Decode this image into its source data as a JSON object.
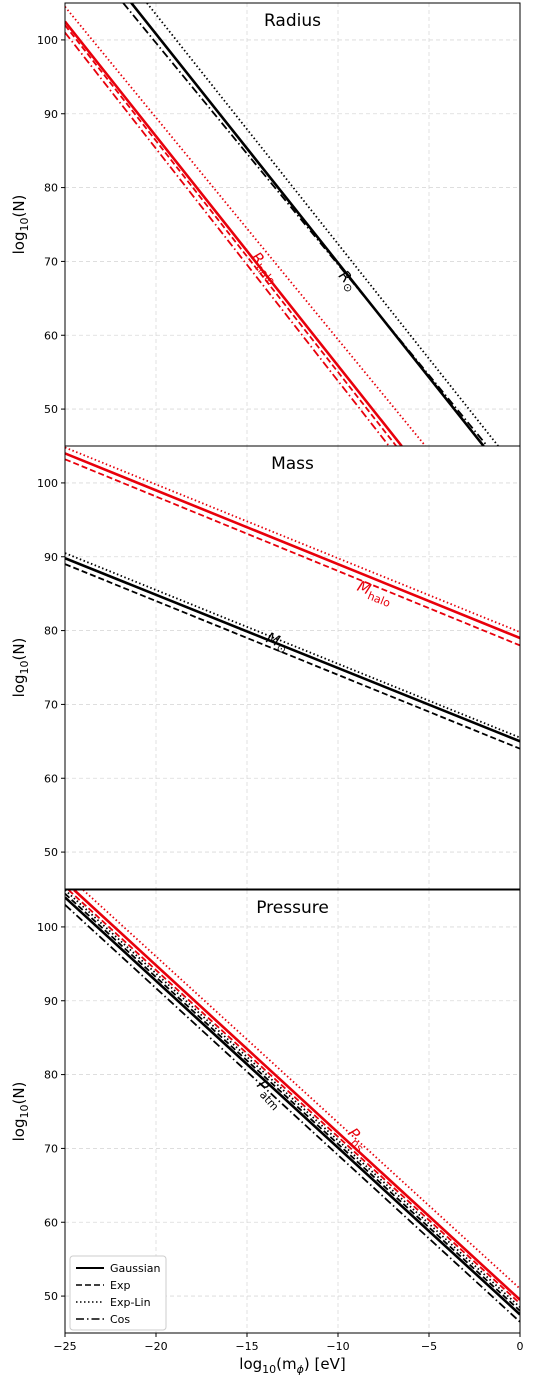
{
  "figure": {
    "xlabel_main": "log",
    "xlabel_sub": "10",
    "xlabel_rest_open": "(m",
    "xlabel_phi": "ϕ",
    "xlabel_rest_close": ") [eV]",
    "ylabel_main": "log",
    "ylabel_sub": "10",
    "ylabel_rest": "(N)",
    "x_ticks": [
      -25,
      -20,
      -15,
      -10,
      -5,
      0
    ],
    "x_tick_labels": [
      "−25",
      "−20",
      "−15",
      "−10",
      "−5",
      "0"
    ],
    "y_ticks": [
      50,
      60,
      70,
      80,
      90,
      100
    ],
    "y_tick_labels": [
      "50",
      "60",
      "70",
      "80",
      "90",
      "100"
    ],
    "xlim": [
      -25,
      0
    ],
    "ylim": [
      45,
      105
    ],
    "grid": true,
    "legend": {
      "placement": "bottom-left",
      "entries": [
        {
          "label": "Gaussian",
          "style": "solid"
        },
        {
          "label": "Exp",
          "style": "dashed"
        },
        {
          "label": "Exp-Lin",
          "style": "dotted"
        },
        {
          "label": "Cos",
          "style": "dashdot"
        }
      ]
    },
    "colors": {
      "black": "#000000",
      "red": "#e8000b"
    }
  },
  "chart_data": [
    {
      "type": "line",
      "title": "Radius",
      "xlim": [
        -25,
        0
      ],
      "ylim": [
        45,
        105
      ],
      "labels": [
        {
          "text": "R",
          "sub": "halo",
          "color": "red",
          "x": -14.8,
          "y": 70.5
        },
        {
          "text": "R",
          "sub": "⊙",
          "color": "black",
          "x": -10.0,
          "y": 68.0
        }
      ],
      "series": [
        {
          "group": "black",
          "style": "solid",
          "x": [
            -22,
            -2
          ],
          "y": [
            107,
            45
          ]
        },
        {
          "group": "black",
          "style": "dashed",
          "x": [
            -22,
            -2
          ],
          "y": [
            107,
            45
          ]
        },
        {
          "group": "black",
          "style": "dotted",
          "x": [
            -20.5,
            -1.2
          ],
          "y": [
            105,
            45
          ]
        },
        {
          "group": "black",
          "style": "dashdot",
          "x": [
            -21.8,
            -1.8
          ],
          "y": [
            105,
            45
          ]
        },
        {
          "group": "red",
          "style": "solid",
          "x": [
            -25,
            -6.5
          ],
          "y": [
            102.5,
            45
          ]
        },
        {
          "group": "red",
          "style": "dashed",
          "x": [
            -25,
            -6.8
          ],
          "y": [
            102,
            45
          ]
        },
        {
          "group": "red",
          "style": "dotted",
          "x": [
            -25,
            -5.2
          ],
          "y": [
            104.5,
            45
          ]
        },
        {
          "group": "red",
          "style": "dashdot",
          "x": [
            -25,
            -7.2
          ],
          "y": [
            101,
            45
          ]
        }
      ]
    },
    {
      "type": "line",
      "title": "Mass",
      "xlim": [
        -25,
        0
      ],
      "ylim": [
        45,
        105
      ],
      "labels": [
        {
          "text": "M",
          "sub": "halo",
          "color": "red",
          "x": -9.0,
          "y": 85.5
        },
        {
          "text": "M",
          "sub": "⊙",
          "color": "black",
          "x": -14.0,
          "y": 78.5
        }
      ],
      "series": [
        {
          "group": "black",
          "style": "solid",
          "x": [
            -25,
            0
          ],
          "y": [
            89.8,
            65.0
          ]
        },
        {
          "group": "black",
          "style": "dashed",
          "x": [
            -25,
            0
          ],
          "y": [
            89.0,
            64.0
          ]
        },
        {
          "group": "black",
          "style": "dotted",
          "x": [
            -25,
            0
          ],
          "y": [
            90.5,
            65.5
          ]
        },
        {
          "group": "red",
          "style": "solid",
          "x": [
            -25,
            0
          ],
          "y": [
            104.0,
            79.0
          ]
        },
        {
          "group": "red",
          "style": "dashed",
          "x": [
            -25,
            0
          ],
          "y": [
            103.2,
            78.0
          ]
        },
        {
          "group": "red",
          "style": "dotted",
          "x": [
            -25,
            0
          ],
          "y": [
            104.8,
            79.8
          ]
        }
      ]
    },
    {
      "type": "line",
      "title": "Pressure",
      "xlim": [
        -25,
        0
      ],
      "ylim": [
        45,
        105
      ],
      "labels": [
        {
          "text": "P",
          "sub": "atm",
          "color": "black",
          "x": -14.5,
          "y": 78.5
        },
        {
          "text": "P",
          "sub": "ns",
          "color": "red",
          "x": -9.5,
          "y": 72.0
        }
      ],
      "series": [
        {
          "group": "black",
          "style": "solid",
          "x": [
            -25,
            0
          ],
          "y": [
            104.0,
            47.5
          ]
        },
        {
          "group": "black",
          "style": "dashed",
          "x": [
            -25,
            0
          ],
          "y": [
            104.5,
            48.0
          ]
        },
        {
          "group": "black",
          "style": "dotted",
          "x": [
            -25,
            0
          ],
          "y": [
            105.0,
            48.5
          ]
        },
        {
          "group": "black",
          "style": "dashdot",
          "x": [
            -25,
            0
          ],
          "y": [
            103.0,
            46.5
          ]
        },
        {
          "group": "red",
          "style": "solid",
          "x": [
            -24.5,
            0
          ],
          "y": [
            105.0,
            49.5
          ]
        },
        {
          "group": "red",
          "style": "dashed",
          "x": [
            -24.8,
            0
          ],
          "y": [
            105.0,
            49.0
          ]
        },
        {
          "group": "red",
          "style": "dotted",
          "x": [
            -24.0,
            0
          ],
          "y": [
            105.0,
            51.0
          ]
        }
      ]
    }
  ]
}
